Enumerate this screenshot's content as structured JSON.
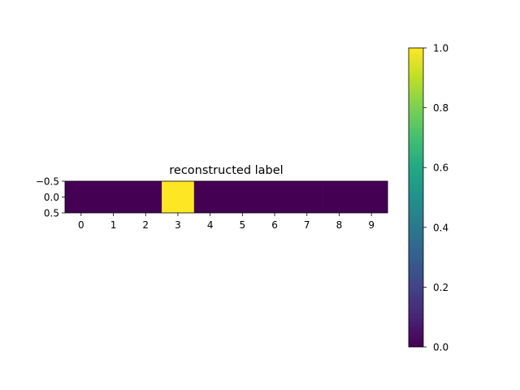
{
  "chart_data": {
    "type": "heatmap",
    "title": "reconstructed label",
    "x_ticks": [
      "0",
      "1",
      "2",
      "3",
      "4",
      "5",
      "6",
      "7",
      "8",
      "9"
    ],
    "y_ticks": [
      "−0.5",
      "0.0",
      "0.5"
    ],
    "y_tick_values": [
      -0.5,
      0.0,
      0.5
    ],
    "ylim": [
      -0.5,
      0.5
    ],
    "values": [
      [
        0,
        0,
        0,
        1,
        0,
        0,
        0,
        0,
        0,
        0
      ]
    ],
    "colormap": "viridis",
    "colorbar": {
      "range": [
        0,
        1
      ],
      "ticks": [
        "0.0",
        "0.2",
        "0.4",
        "0.6",
        "0.8",
        "1.0"
      ],
      "tick_values": [
        0.0,
        0.2,
        0.4,
        0.6,
        0.8,
        1.0
      ]
    },
    "colors": {
      "low": "#440154",
      "high": "#fde725"
    }
  }
}
